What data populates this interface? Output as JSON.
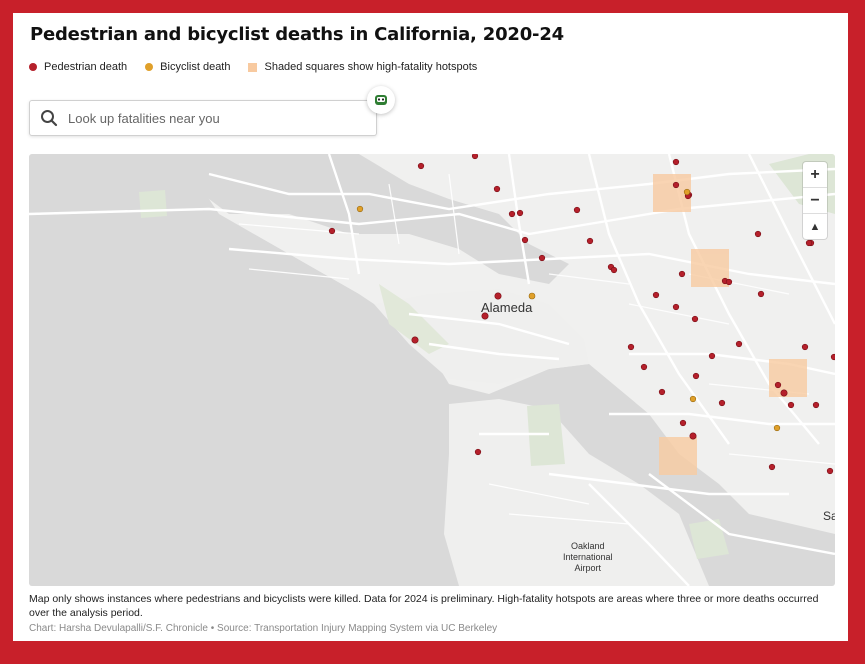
{
  "title": "Pedestrian and bicyclist deaths in California, 2020-24",
  "legend": {
    "pedestrian": "Pedestrian death",
    "bicyclist": "Bicyclist death",
    "hotspot": "Shaded squares show high-fatality hotspots"
  },
  "colors": {
    "pedestrian": "#b5202b",
    "bicyclist": "#e0a02a",
    "hotspot": "#f8caa0",
    "frame": "#c8202a"
  },
  "search": {
    "placeholder": "Look up fatalities near you"
  },
  "map": {
    "zoom_in": "+",
    "zoom_out": "−",
    "reset_north": "▲",
    "labels": {
      "alameda": "Alameda",
      "airport": "Oakland\nInternational\nAirport",
      "sa": "Sa"
    }
  },
  "note": "Map only shows instances where pedestrians and bicyclists were killed. Data for 2024 is preliminary. High-fatality hotspots are areas where three or more deaths occurred over the analysis period.",
  "credit": "Chart: Harsha Devulapalli/S.F. Chronicle • Source: Transportation Injury Mapping System via UC Berkeley"
}
